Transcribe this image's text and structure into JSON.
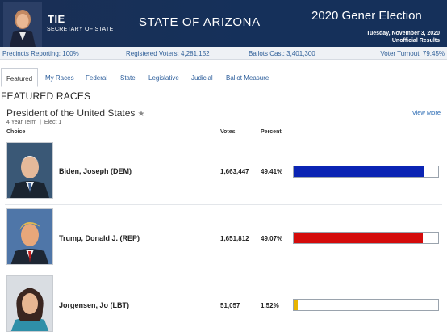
{
  "header": {
    "secretary_name": "TIE",
    "secretary_title": "SECRETARY OF STATE",
    "state": "STATE OF ARIZONA",
    "election_title": "2020 Gener  Election",
    "date": "Tuesday, November 3, 2020",
    "result_status": "Unofficial Results"
  },
  "stats": {
    "precincts": "Precincts Reporting: 100%",
    "registered": "Registered Voters: 4,281,152",
    "ballots": "Ballots Cast: 3,401,300",
    "turnout": "Voter Turnout: 79.45%"
  },
  "tabs": [
    {
      "label": "Featured",
      "active": true
    },
    {
      "label": "My Races",
      "active": false
    },
    {
      "label": "Federal",
      "active": false
    },
    {
      "label": "State",
      "active": false
    },
    {
      "label": "Legislative",
      "active": false
    },
    {
      "label": "Judicial",
      "active": false
    },
    {
      "label": "Ballot Measure",
      "active": false
    }
  ],
  "section_title": "FEATURED RACES",
  "race": {
    "title": "President of the United States",
    "star_icon": "star-icon",
    "term": "4 Year Term",
    "separator": "|",
    "elect": "Elect 1",
    "view_more": "View More",
    "columns": {
      "choice": "Choice",
      "votes": "Votes",
      "percent": "Percent"
    }
  },
  "candidates": [
    {
      "name": "Biden, Joseph (DEM)",
      "votes": "1,663,447",
      "percent": "49.41%",
      "share": 0.4941,
      "bar_color": "#0a24b4",
      "photo_icon": "biden-photo"
    },
    {
      "name": "Trump, Donald J. (REP)",
      "votes": "1,651,812",
      "percent": "49.07%",
      "share": 0.4907,
      "bar_color": "#d40b0b",
      "photo_icon": "trump-photo"
    },
    {
      "name": "Jorgensen, Jo (LBT)",
      "votes": "51,057",
      "percent": "1.52%",
      "share": 0.0152,
      "bar_color": "#e8b400",
      "photo_icon": "jorgensen-photo"
    }
  ]
}
